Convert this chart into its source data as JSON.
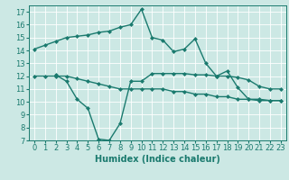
{
  "xlabel": "Humidex (Indice chaleur)",
  "ylabel": "",
  "background_color": "#cce8e4",
  "grid_color": "#ffffff",
  "line_color": "#1a7a6e",
  "xlim": [
    -0.5,
    23.5
  ],
  "ylim": [
    7,
    17.5
  ],
  "yticks": [
    7,
    8,
    9,
    10,
    11,
    12,
    13,
    14,
    15,
    16,
    17
  ],
  "xticks": [
    0,
    1,
    2,
    3,
    4,
    5,
    6,
    7,
    8,
    9,
    10,
    11,
    12,
    13,
    14,
    15,
    16,
    17,
    18,
    19,
    20,
    21,
    22,
    23
  ],
  "line1_x": [
    0,
    1,
    2,
    3,
    4,
    5,
    6,
    7,
    8,
    9,
    10,
    11,
    12,
    13,
    14,
    15,
    16,
    17,
    18,
    19,
    20,
    21,
    22,
    23
  ],
  "line1_y": [
    14.1,
    14.4,
    14.7,
    15.0,
    15.1,
    15.2,
    15.4,
    15.5,
    15.8,
    16.0,
    17.2,
    15.0,
    14.8,
    13.9,
    14.1,
    14.9,
    13.0,
    12.0,
    12.4,
    11.1,
    10.2,
    10.2,
    10.1,
    10.1
  ],
  "line2_x": [
    0,
    1,
    2,
    3,
    4,
    5,
    6,
    7,
    8,
    9,
    10,
    11,
    12,
    13,
    14,
    15,
    16,
    17,
    18,
    19,
    20,
    21,
    22,
    23
  ],
  "line2_y": [
    12.0,
    12.0,
    12.0,
    12.0,
    11.8,
    11.6,
    11.4,
    11.2,
    11.0,
    11.0,
    11.0,
    11.0,
    11.0,
    10.8,
    10.8,
    10.6,
    10.6,
    10.4,
    10.4,
    10.2,
    10.2,
    10.1,
    10.1,
    10.1
  ],
  "line3_x": [
    2,
    3,
    4,
    5,
    6,
    7,
    8,
    9,
    10,
    11,
    12,
    13,
    14,
    15,
    16,
    17,
    18,
    19,
    20,
    21,
    22,
    23
  ],
  "line3_y": [
    12.1,
    11.6,
    10.2,
    9.5,
    7.1,
    7.0,
    8.3,
    11.6,
    11.6,
    12.2,
    12.2,
    12.2,
    12.2,
    12.1,
    12.1,
    12.0,
    12.0,
    11.9,
    11.7,
    11.2,
    11.0,
    11.0
  ],
  "marker_style": "D",
  "marker_size": 2.0,
  "line_width": 1.0,
  "tick_fontsize": 6,
  "label_fontsize": 7
}
